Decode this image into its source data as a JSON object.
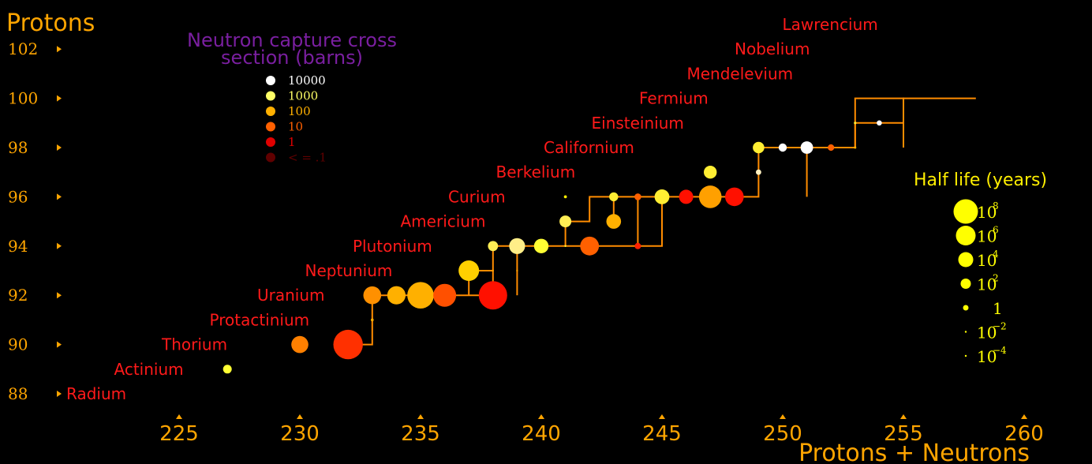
{
  "chart_data": {
    "type": "scatter",
    "ylabel": "Protons",
    "xlabel": "Protons + Neutrons",
    "xlim": [
      220.5,
      262
    ],
    "ylim": [
      87.2,
      103.2
    ],
    "x_ticks": [
      "225",
      "230",
      "235",
      "240",
      "245",
      "250",
      "255",
      "260"
    ],
    "x_tick_values": [
      225,
      230,
      235,
      240,
      245,
      250,
      255,
      260
    ],
    "y_ticks": [
      "88",
      "90",
      "92",
      "94",
      "96",
      "98",
      "100",
      "102"
    ],
    "y_tick_values": [
      88,
      90,
      92,
      94,
      96,
      98,
      100,
      102
    ],
    "elements": [
      {
        "name": "Radium",
        "z": 88
      },
      {
        "name": "Actinium",
        "z": 89
      },
      {
        "name": "Thorium",
        "z": 90
      },
      {
        "name": "Protactinium",
        "z": 91
      },
      {
        "name": "Uranium",
        "z": 92
      },
      {
        "name": "Neptunium",
        "z": 93
      },
      {
        "name": "Plutonium",
        "z": 94
      },
      {
        "name": "Americium",
        "z": 95
      },
      {
        "name": "Curium",
        "z": 96
      },
      {
        "name": "Berkelium",
        "z": 97
      },
      {
        "name": "Californium",
        "z": 98
      },
      {
        "name": "Einsteinium",
        "z": 99
      },
      {
        "name": "Fermium",
        "z": 100
      },
      {
        "name": "Mendelevium",
        "z": 101
      },
      {
        "name": "Nobelium",
        "z": 102
      },
      {
        "name": "Lawrencium",
        "z": 103
      }
    ],
    "capture_legend": {
      "title_lines": [
        "Neutron capture cross",
        "section (barns)"
      ],
      "entries": [
        {
          "label": "10000",
          "color": "#ffffff"
        },
        {
          "label": "1000",
          "color": "#ffff66"
        },
        {
          "label": "100",
          "color": "#ffb000"
        },
        {
          "label": "10",
          "color": "#ff6000"
        },
        {
          "label": "1",
          "color": "#e00000"
        },
        {
          "label": "< = .1",
          "color": "#600000"
        }
      ]
    },
    "halflife_legend": {
      "title": "Half life (years)",
      "entries": [
        {
          "base": "10",
          "exp": "8",
          "years": 100000000.0
        },
        {
          "base": "10",
          "exp": "6",
          "years": 1000000.0
        },
        {
          "base": "10",
          "exp": "4",
          "years": 10000.0
        },
        {
          "base": "10",
          "exp": "2",
          "years": 100.0
        },
        {
          "base": "1",
          "exp": "",
          "years": 1
        },
        {
          "base": "10",
          "exp": "−2",
          "years": 0.01
        },
        {
          "base": "10",
          "exp": "−4",
          "years": 0.0001
        }
      ],
      "color": "#ffff00"
    },
    "nuclides": [
      {
        "a": 227,
        "z": 89,
        "half_life_years": 21.8,
        "color": "#ffff33"
      },
      {
        "a": 230,
        "z": 90,
        "half_life_years": 75400,
        "color": "#ff8000"
      },
      {
        "a": 232,
        "z": 90,
        "half_life_years": 14000000000.0,
        "color": "#ff3000"
      },
      {
        "a": 233,
        "z": 91,
        "half_life_years": 0.074,
        "color": "#ffb000"
      },
      {
        "a": 233,
        "z": 92,
        "half_life_years": 159000,
        "color": "#ff9000"
      },
      {
        "a": 234,
        "z": 92,
        "half_life_years": 245000,
        "color": "#ffb000"
      },
      {
        "a": 235,
        "z": 92,
        "half_life_years": 700000000.0,
        "color": "#ffb000"
      },
      {
        "a": 236,
        "z": 92,
        "half_life_years": 23000000.0,
        "color": "#ff5000"
      },
      {
        "a": 238,
        "z": 92,
        "half_life_years": 4500000000.0,
        "color": "#ff1000"
      },
      {
        "a": 237,
        "z": 93,
        "half_life_years": 2100000.0,
        "color": "#ffd000"
      },
      {
        "a": 238,
        "z": 93,
        "half_life_years": 0.0058,
        "color": "#ffa000"
      },
      {
        "a": 239,
        "z": 93,
        "half_life_years": 0.0064,
        "color": "#ffa000"
      },
      {
        "a": 238,
        "z": 94,
        "half_life_years": 87.7,
        "color": "#ffee55"
      },
      {
        "a": 239,
        "z": 94,
        "half_life_years": 24110,
        "color": "#ffee88"
      },
      {
        "a": 240,
        "z": 94,
        "half_life_years": 6561,
        "color": "#ffff33"
      },
      {
        "a": 241,
        "z": 94,
        "half_life_years": 0.012,
        "color": "#ffff33"
      },
      {
        "a": 242,
        "z": 94,
        "half_life_years": 375000,
        "color": "#ff6000"
      },
      {
        "a": 244,
        "z": 94,
        "half_life_years": 2.0,
        "color": "#ff2000"
      },
      {
        "a": 241,
        "z": 95,
        "half_life_years": 432,
        "color": "#ffee55"
      },
      {
        "a": 243,
        "z": 95,
        "half_life_years": 7370,
        "color": "#ffb000"
      },
      {
        "a": 241,
        "z": 96,
        "half_life_years": 0.09,
        "color": "#ffee00"
      },
      {
        "a": 243,
        "z": 96,
        "half_life_years": 29,
        "color": "#ffee33"
      },
      {
        "a": 244,
        "z": 96,
        "half_life_years": 3.5,
        "color": "#ff6000"
      },
      {
        "a": 245,
        "z": 96,
        "half_life_years": 8500,
        "color": "#ffee33"
      },
      {
        "a": 246,
        "z": 96,
        "half_life_years": 4760,
        "color": "#ff1000"
      },
      {
        "a": 247,
        "z": 96,
        "half_life_years": 15600000.0,
        "color": "#ffa000"
      },
      {
        "a": 248,
        "z": 96,
        "half_life_years": 348000,
        "color": "#ff1000"
      },
      {
        "a": 247,
        "z": 97,
        "half_life_years": 1380,
        "color": "#ffee33"
      },
      {
        "a": 249,
        "z": 97,
        "half_life_years": 0.9,
        "color": "#fff0c0"
      },
      {
        "a": 249,
        "z": 98,
        "half_life_years": 351,
        "color": "#ffee33"
      },
      {
        "a": 250,
        "z": 98,
        "half_life_years": 13,
        "color": "#ffffff"
      },
      {
        "a": 251,
        "z": 98,
        "half_life_years": 898,
        "color": "#ffffff"
      },
      {
        "a": 252,
        "z": 98,
        "half_life_years": 2.6,
        "color": "#ff6000"
      },
      {
        "a": 253,
        "z": 98,
        "half_life_years": 0.05,
        "color": "#ffb000"
      },
      {
        "a": 253,
        "z": 99,
        "half_life_years": 0.056,
        "color": "#ffee33"
      },
      {
        "a": 254,
        "z": 99,
        "half_life_years": 0.75,
        "color": "#ffffff"
      }
    ],
    "series_color": "#ff8c00"
  }
}
